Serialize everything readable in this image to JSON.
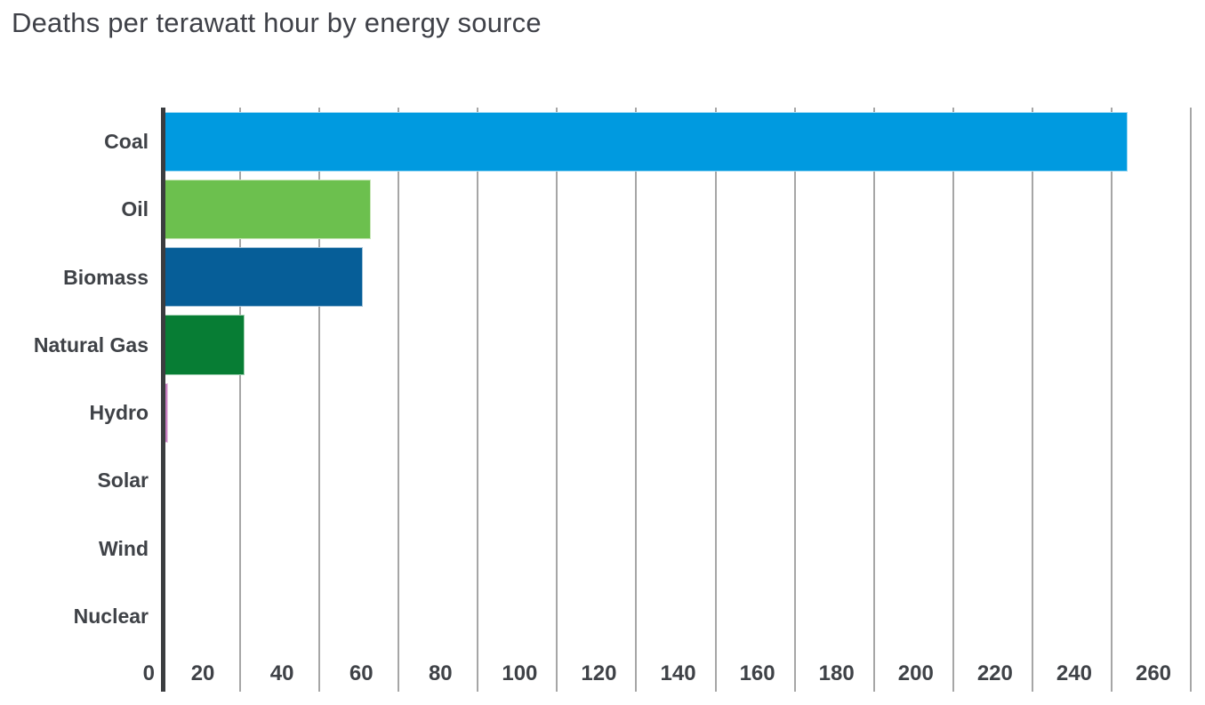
{
  "page": {
    "background": "#ffffff"
  },
  "chart_data": {
    "type": "bar",
    "orientation": "horizontal",
    "title": "Deaths per terawatt hour by energy source",
    "categories": [
      "Coal",
      "Oil",
      "Biomass",
      "Natural Gas",
      "Hydro",
      "Solar",
      "Wind",
      "Nuclear"
    ],
    "values": [
      244,
      53,
      51,
      21,
      1.8,
      0.5,
      0.4,
      0.1
    ],
    "bar_colors": [
      "#009ae0",
      "#6cc04e",
      "#065e98",
      "#077d34",
      "#c87fc2",
      "#f1e87e",
      "#7b61a5",
      "#f8dbc7"
    ],
    "bar_border_colors": [
      "#9ed8f2",
      "#c9e6b8",
      "#9fc0d6",
      "#9ecfaf",
      "#e8cbe5",
      "#f8f3bb",
      "#c5bad9",
      "#fcebe0"
    ],
    "xlabel": "",
    "ylabel": "",
    "xlim": [
      0,
      260
    ],
    "xticks": [
      0,
      20,
      40,
      60,
      80,
      100,
      120,
      140,
      160,
      180,
      200,
      220,
      240,
      260
    ],
    "grid": "vertical-gridlines-full-height",
    "legend": "none",
    "colors": {
      "axis": "#3b3d40",
      "gridline": "#a6a6a6",
      "tick_text": "#3f4247",
      "category_text": "#3f4247",
      "title_text": "#3f4148"
    }
  }
}
